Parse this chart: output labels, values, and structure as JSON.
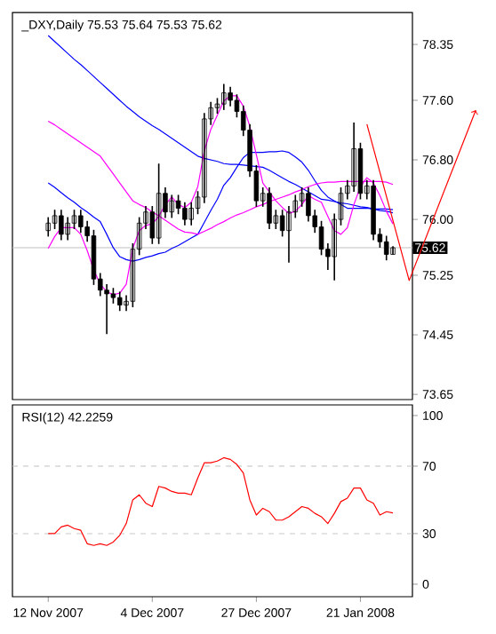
{
  "chart_data": [
    {
      "type": "candlestick",
      "title": "_DXY,Daily  75.53 75.64 75.53 75.62",
      "color": "#000000",
      "categories": [
        null,
        null,
        null,
        null,
        null,
        null,
        null,
        null,
        null,
        null,
        null,
        null,
        null,
        null,
        null,
        null,
        null,
        null,
        null,
        null,
        null,
        null,
        null,
        null,
        null,
        null,
        null,
        null,
        null,
        null,
        null,
        null,
        null,
        null,
        null,
        null,
        null,
        null,
        null,
        null,
        null,
        null,
        null,
        null,
        null,
        null,
        null,
        null,
        null,
        null,
        null,
        null,
        null,
        null
      ],
      "ohlc": [
        [
          75.85,
          76.03,
          75.77,
          75.95
        ],
        [
          75.95,
          76.13,
          75.87,
          76.05
        ],
        [
          76.05,
          76.13,
          75.72,
          75.8
        ],
        [
          75.8,
          76.03,
          75.72,
          75.95
        ],
        [
          75.95,
          76.13,
          75.87,
          76.05
        ],
        [
          76.05,
          76.13,
          75.82,
          75.9
        ],
        [
          75.9,
          75.98,
          75.7,
          75.78
        ],
        [
          75.78,
          75.86,
          75.12,
          75.2
        ],
        [
          75.2,
          75.28,
          74.97,
          75.05
        ],
        [
          75.05,
          75.13,
          74.46,
          75.0
        ],
        [
          75.0,
          75.08,
          74.87,
          74.95
        ],
        [
          74.95,
          75.03,
          74.77,
          74.85
        ],
        [
          74.85,
          74.98,
          74.77,
          74.9
        ],
        [
          74.9,
          75.68,
          74.82,
          75.6
        ],
        [
          75.6,
          76.03,
          75.52,
          75.95
        ],
        [
          75.95,
          76.18,
          75.87,
          76.1
        ],
        [
          76.1,
          76.18,
          75.67,
          75.75
        ],
        [
          75.75,
          76.75,
          75.67,
          76.35
        ],
        [
          76.35,
          76.43,
          76.02,
          76.1
        ],
        [
          76.1,
          76.33,
          76.02,
          76.25
        ],
        [
          76.25,
          76.33,
          76.07,
          76.15
        ],
        [
          76.15,
          76.23,
          75.92,
          76.0
        ],
        [
          76.0,
          76.23,
          75.92,
          76.15
        ],
        [
          76.15,
          76.38,
          76.07,
          76.3
        ],
        [
          76.3,
          77.43,
          76.22,
          77.35
        ],
        [
          77.35,
          77.58,
          77.27,
          77.5
        ],
        [
          77.5,
          77.63,
          77.42,
          77.55
        ],
        [
          77.55,
          77.82,
          77.47,
          77.7
        ],
        [
          77.7,
          77.78,
          77.52,
          77.6
        ],
        [
          77.6,
          77.68,
          77.37,
          77.45
        ],
        [
          77.45,
          77.53,
          77.12,
          77.2
        ],
        [
          77.2,
          77.28,
          76.57,
          76.65
        ],
        [
          76.65,
          76.73,
          76.17,
          76.25
        ],
        [
          76.25,
          76.43,
          76.17,
          76.35
        ],
        [
          76.35,
          76.43,
          75.87,
          75.95
        ],
        [
          75.95,
          76.13,
          75.87,
          76.05
        ],
        [
          76.05,
          76.13,
          75.77,
          75.85
        ],
        [
          75.85,
          76.18,
          75.42,
          76.1
        ],
        [
          76.1,
          76.33,
          76.02,
          76.25
        ],
        [
          76.25,
          76.43,
          76.17,
          76.35
        ],
        [
          76.35,
          76.43,
          75.97,
          76.05
        ],
        [
          76.05,
          76.13,
          75.82,
          75.9
        ],
        [
          75.9,
          75.98,
          75.52,
          75.6
        ],
        [
          75.6,
          75.68,
          75.32,
          75.5
        ],
        [
          75.5,
          76.08,
          75.18,
          76.0
        ],
        [
          76.0,
          76.43,
          75.92,
          76.35
        ],
        [
          76.35,
          76.53,
          76.27,
          76.45
        ],
        [
          76.45,
          77.3,
          76.37,
          76.95
        ],
        [
          76.95,
          77.03,
          76.27,
          76.35
        ],
        [
          76.35,
          76.53,
          76.27,
          76.45
        ],
        [
          76.45,
          76.53,
          75.72,
          75.8
        ],
        [
          75.8,
          75.88,
          75.62,
          75.7
        ],
        [
          75.7,
          75.78,
          75.45,
          75.53
        ],
        [
          75.53,
          75.64,
          75.53,
          75.62
        ]
      ],
      "series": [
        {
          "type": "line",
          "color": "#0000ff",
          "values": [
            78.47,
            78.39,
            78.31,
            78.23,
            78.15,
            78.08,
            78.0,
            77.92,
            77.84,
            77.76,
            77.68,
            77.6,
            77.52,
            77.45,
            77.38,
            77.32,
            77.26,
            77.21,
            77.15,
            77.09,
            77.03,
            76.97,
            76.91,
            76.85,
            76.82,
            76.8,
            76.78,
            76.75,
            76.74,
            76.74,
            76.73,
            76.72,
            76.71,
            76.7,
            76.66,
            76.61,
            76.56,
            76.51,
            76.47,
            76.42,
            76.37,
            76.32,
            76.27,
            76.26,
            76.24,
            76.22,
            76.21,
            76.19,
            76.17,
            76.16,
            76.14,
            76.12,
            76.11,
            76.09
          ]
        },
        {
          "type": "line",
          "color": "#0000ff",
          "values": [
            76.49,
            76.43,
            76.36,
            76.29,
            76.23,
            76.16,
            76.1,
            76.03,
            75.97,
            75.8,
            75.62,
            75.5,
            75.46,
            75.44,
            75.46,
            75.49,
            75.51,
            75.54,
            75.56,
            75.61,
            75.65,
            75.7,
            75.75,
            75.8,
            75.96,
            76.12,
            76.27,
            76.46,
            76.56,
            76.7,
            76.83,
            76.9,
            76.9,
            76.9,
            76.91,
            76.91,
            76.92,
            76.9,
            76.84,
            76.77,
            76.66,
            76.52,
            76.39,
            76.3,
            76.25,
            76.2,
            76.15,
            76.15,
            76.15,
            76.15,
            76.14,
            76.14,
            76.14,
            76.13
          ]
        },
        {
          "type": "line",
          "color": "#ff00ff",
          "values": [
            77.32,
            77.27,
            77.21,
            77.15,
            77.09,
            77.03,
            76.97,
            76.91,
            76.85,
            76.73,
            76.61,
            76.49,
            76.37,
            76.25,
            76.2,
            76.16,
            76.1,
            76.05,
            75.99,
            75.93,
            75.87,
            75.83,
            75.82,
            75.8,
            75.84,
            75.88,
            75.93,
            75.97,
            76.02,
            76.06,
            76.09,
            76.13,
            76.17,
            76.2,
            76.24,
            76.27,
            76.3,
            76.33,
            76.37,
            76.4,
            76.44,
            76.47,
            76.49,
            76.5,
            76.5,
            76.51,
            76.51,
            76.51,
            76.51,
            76.51,
            76.51,
            76.51,
            76.5,
            76.47
          ]
        },
        {
          "type": "line",
          "color": "#ff00ff",
          "values": [
            75.61,
            75.77,
            75.89,
            75.89,
            75.89,
            75.8,
            75.58,
            75.32,
            75.13,
            75.03,
            74.99,
            75.01,
            75.13,
            75.61,
            75.85,
            75.92,
            75.94,
            76.04,
            76.2,
            76.3,
            76.2,
            76.16,
            76.23,
            76.44,
            76.92,
            77.21,
            77.4,
            77.59,
            77.66,
            77.66,
            77.52,
            77.25,
            76.87,
            76.49,
            76.37,
            76.25,
            76.16,
            76.08,
            76.11,
            76.2,
            76.32,
            76.27,
            76.23,
            76.04,
            75.85,
            75.8,
            75.89,
            76.2,
            76.44,
            76.56,
            76.49,
            76.32,
            76.11,
            75.94
          ]
        }
      ],
      "ylim": [
        73.58,
        78.78
      ],
      "yticks": [
        78.35,
        {
          "value": 77.6,
          "label": "77.60"
        },
        {
          "value": 76.8,
          "label": "76.80"
        },
        {
          "value": 76.0,
          "label": "76.00"
        },
        75.25,
        74.45,
        73.65
      ],
      "ref_lines": [
        {
          "axis": "y",
          "value": 75.62,
          "label": "75.62",
          "color": "#c0c0c0"
        }
      ],
      "tick_labels": "y"
    },
    {
      "type": "line",
      "title": "RSI(12) 42.2259",
      "color": "#ff0000",
      "categories": [
        "12 Nov 2007",
        null,
        null,
        null,
        null,
        null,
        null,
        null,
        null,
        null,
        null,
        null,
        null,
        null,
        null,
        null,
        "4 Dec 2007",
        null,
        null,
        null,
        null,
        null,
        null,
        null,
        null,
        null,
        null,
        null,
        null,
        null,
        null,
        null,
        "27 Dec 2007",
        null,
        null,
        null,
        null,
        null,
        null,
        null,
        null,
        null,
        null,
        null,
        null,
        null,
        null,
        null,
        "21 Jan 2008",
        null,
        null,
        null,
        null,
        null
      ],
      "values": [
        30,
        30,
        34,
        35,
        33,
        32,
        24,
        23,
        24,
        23,
        25,
        29,
        36,
        50,
        53,
        48,
        46,
        58,
        57,
        55,
        54,
        54,
        53,
        63,
        72,
        72,
        73,
        75,
        74,
        71,
        66,
        50,
        41,
        45,
        43,
        38,
        38,
        40,
        43,
        46,
        45,
        42,
        40,
        36,
        42,
        49,
        51,
        57,
        57,
        50,
        48,
        41,
        43,
        42.2259
      ],
      "ylim": [
        -7.4,
        106.3
      ],
      "yticks": [
        0,
        30,
        70,
        100
      ],
      "ref_lines": [
        {
          "axis": "y",
          "value": 70,
          "color": "#c0c0c0",
          "line_style": "dashed"
        },
        {
          "axis": "y",
          "value": 30,
          "color": "#c0c0c0",
          "line_style": "dashed"
        }
      ]
    }
  ]
}
